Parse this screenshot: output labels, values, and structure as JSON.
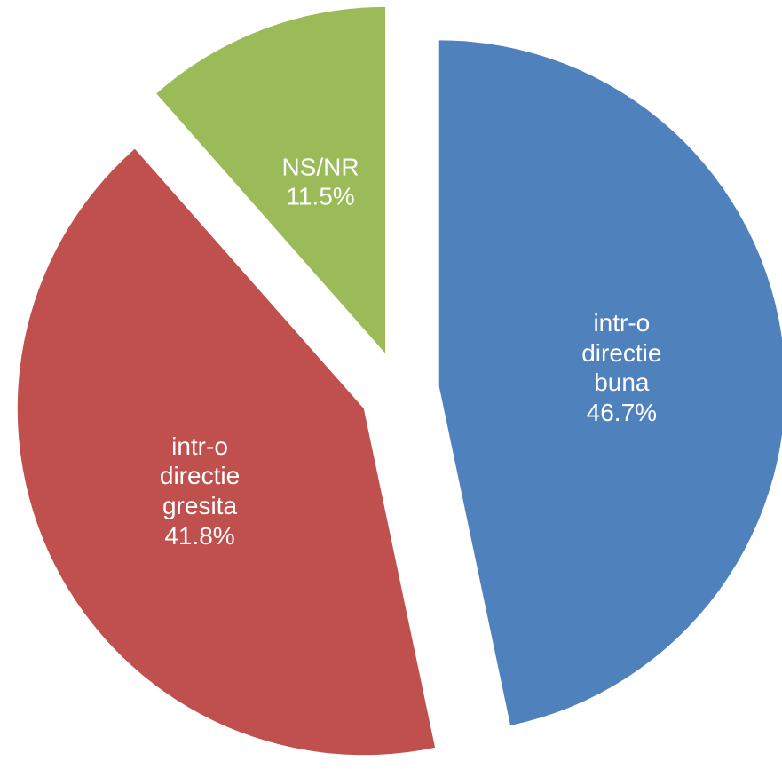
{
  "chart_data": {
    "type": "pie",
    "categories": [
      "intr-o directie buna",
      "intr-o directie gresita",
      "NS/NR"
    ],
    "values": [
      46.7,
      41.8,
      11.5
    ],
    "value_labels": [
      "46.7%",
      "41.8%",
      "11.5%"
    ],
    "colors": [
      "#4f81bd",
      "#c0504d",
      "#9bbb59"
    ]
  }
}
